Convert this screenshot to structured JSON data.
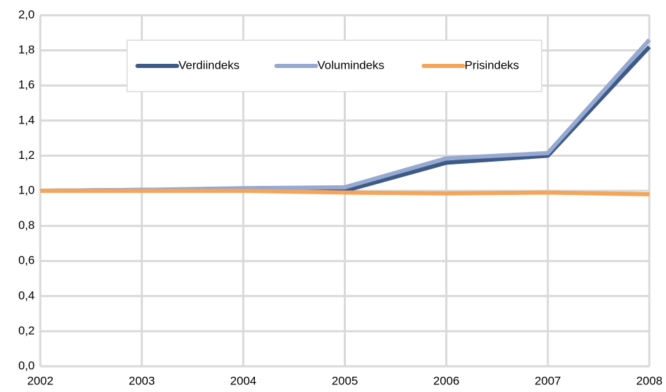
{
  "chart_data": {
    "type": "line",
    "x": [
      2002,
      2003,
      2004,
      2005,
      2006,
      2007,
      2008
    ],
    "xlim": [
      2002,
      2008
    ],
    "xticks": [
      2002,
      2003,
      2004,
      2005,
      2006,
      2007,
      2008
    ],
    "ylim": [
      0,
      2
    ],
    "yticks": [
      {
        "value": 0,
        "label": "0,0"
      },
      {
        "value": 0.2,
        "label": "0,2"
      },
      {
        "value": 0.4,
        "label": "0,4"
      },
      {
        "value": 0.6,
        "label": "0,6"
      },
      {
        "value": 0.8,
        "label": "0,8"
      },
      {
        "value": 1.0,
        "label": "1,0"
      },
      {
        "value": 1.2,
        "label": "1,2"
      },
      {
        "value": 1.4,
        "label": "1,4"
      },
      {
        "value": 1.6,
        "label": "1,6"
      },
      {
        "value": 1.8,
        "label": "1,8"
      },
      {
        "value": 2.0,
        "label": "2,0"
      }
    ],
    "grid": true,
    "legend": "top",
    "series": [
      {
        "name": "Verdiindeks",
        "color": "#3e5a87",
        "values": [
          1.0,
          1.005,
          1.01,
          1.0,
          1.16,
          1.2,
          1.82
        ]
      },
      {
        "name": "Volumindeks",
        "color": "#95a9d1",
        "values": [
          1.0,
          1.005,
          1.015,
          1.02,
          1.185,
          1.215,
          1.86
        ]
      },
      {
        "name": "Prisindeks",
        "color": "#f5a55a",
        "values": [
          1.0,
          1.0,
          1.0,
          0.99,
          0.985,
          0.99,
          0.98
        ]
      }
    ]
  }
}
